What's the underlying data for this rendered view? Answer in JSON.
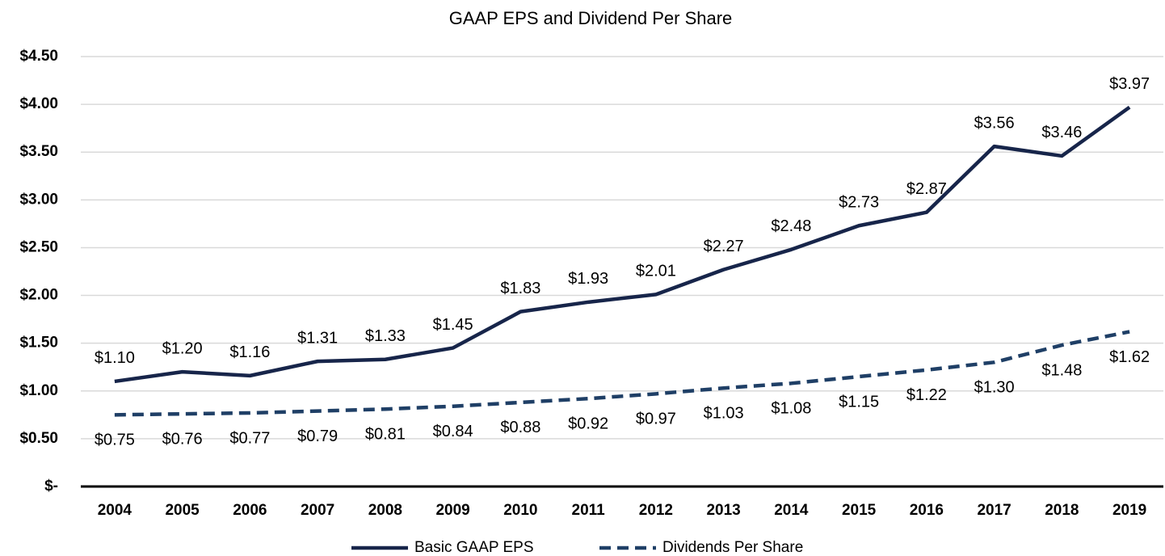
{
  "chart_data": {
    "type": "line",
    "title": "GAAP EPS and Dividend Per Share",
    "categories": [
      "2004",
      "2005",
      "2006",
      "2007",
      "2008",
      "2009",
      "2010",
      "2011",
      "2012",
      "2013",
      "2014",
      "2015",
      "2016",
      "2017",
      "2018",
      "2019"
    ],
    "series": [
      {
        "name": "Basic GAAP EPS",
        "color": "#17254a",
        "dash": false,
        "values": [
          1.1,
          1.2,
          1.16,
          1.31,
          1.33,
          1.45,
          1.83,
          1.93,
          2.01,
          2.27,
          2.48,
          2.73,
          2.87,
          3.56,
          3.46,
          3.97
        ],
        "value_labels": [
          "$1.10",
          "$1.20",
          "$1.16",
          "$1.31",
          "$1.33",
          "$1.45",
          "$1.83",
          "$1.93",
          "$2.01",
          "$2.27",
          "$2.48",
          "$2.73",
          "$2.87",
          "$3.56",
          "$3.46",
          "$3.97"
        ]
      },
      {
        "name": "Dividends Per Share",
        "color": "#1f3f66",
        "dash": true,
        "values": [
          0.75,
          0.76,
          0.77,
          0.79,
          0.81,
          0.84,
          0.88,
          0.92,
          0.97,
          1.03,
          1.08,
          1.15,
          1.22,
          1.3,
          1.48,
          1.62
        ],
        "value_labels": [
          "$0.75",
          "$0.76",
          "$0.77",
          "$0.79",
          "$0.81",
          "$0.84",
          "$0.88",
          "$0.92",
          "$0.97",
          "$1.03",
          "$1.08",
          "$1.15",
          "$1.22",
          "$1.30",
          "$1.48",
          "$1.62"
        ]
      }
    ],
    "ylim": [
      0,
      4.5
    ],
    "yticks": [
      {
        "value": 0,
        "label": "$-"
      },
      {
        "value": 0.5,
        "label": "$0.50"
      },
      {
        "value": 1,
        "label": "$1.00"
      },
      {
        "value": 1.5,
        "label": "$1.50"
      },
      {
        "value": 2,
        "label": "$2.00"
      },
      {
        "value": 2.5,
        "label": "$2.50"
      },
      {
        "value": 3,
        "label": "$3.00"
      },
      {
        "value": 3.5,
        "label": "$3.50"
      },
      {
        "value": 4,
        "label": "$4.00"
      },
      {
        "value": 4.5,
        "label": "$4.50"
      }
    ],
    "grid": true,
    "legend": "bottom"
  }
}
